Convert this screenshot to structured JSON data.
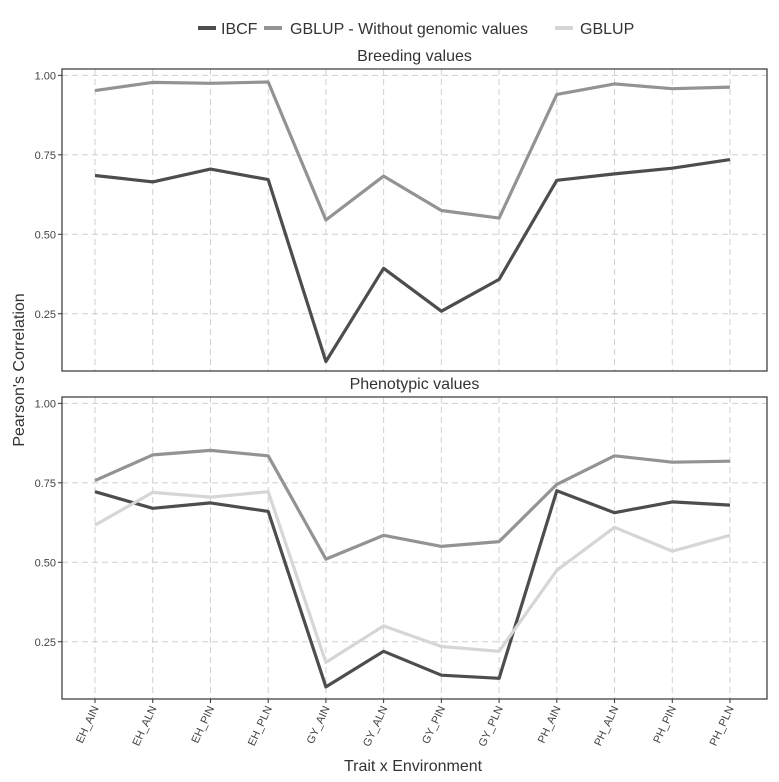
{
  "chart_data": {
    "type": "line",
    "categories": [
      "EH_AIN",
      "EH_ALN",
      "EH_PIN",
      "EH_PLN",
      "GY_AIN",
      "GY_ALN",
      "GY_PIN",
      "GY_PLN",
      "PH_AIN",
      "PH_ALN",
      "PH_PIN",
      "PH_PLN"
    ],
    "xlabel": "Trait x Environment",
    "ylabel": "Pearson's Correlation",
    "legend": {
      "position": "top",
      "entries": [
        {
          "name": "IBCF",
          "color": "#4d4d4d"
        },
        {
          "name": "GBLUP - Without genomic values",
          "color": "#939393"
        },
        {
          "name": "GBLUP",
          "color": "#d6d6d6"
        }
      ]
    },
    "grid": true,
    "yticks": [
      "0.25",
      "0.50",
      "0.75",
      "1.00"
    ],
    "ylim": [
      0.07,
      1.02
    ],
    "panels": [
      {
        "title": "Breeding values",
        "series": [
          {
            "name": "IBCF",
            "color": "#4d4d4d",
            "values": [
              0.685,
              0.665,
              0.705,
              0.672,
              0.1,
              0.393,
              0.258,
              0.358,
              0.67,
              0.69,
              0.708,
              0.735
            ]
          },
          {
            "name": "GBLUP - Without genomic values",
            "color": "#939393",
            "values": [
              0.952,
              0.978,
              0.975,
              0.979,
              0.545,
              0.683,
              0.575,
              0.551,
              0.94,
              0.973,
              0.958,
              0.963
            ]
          }
        ]
      },
      {
        "title": "Phenotypic values",
        "series": [
          {
            "name": "IBCF",
            "color": "#4d4d4d",
            "values": [
              0.722,
              0.67,
              0.687,
              0.66,
              0.108,
              0.22,
              0.145,
              0.135,
              0.725,
              0.656,
              0.69,
              0.68
            ]
          },
          {
            "name": "GBLUP - Without genomic values",
            "color": "#939393",
            "values": [
              0.757,
              0.838,
              0.852,
              0.835,
              0.51,
              0.585,
              0.55,
              0.565,
              0.745,
              0.835,
              0.815,
              0.818
            ]
          },
          {
            "name": "GBLUP",
            "color": "#d6d6d6",
            "values": [
              0.617,
              0.72,
              0.705,
              0.722,
              0.185,
              0.3,
              0.235,
              0.22,
              0.475,
              0.61,
              0.535,
              0.585
            ]
          }
        ]
      }
    ]
  }
}
